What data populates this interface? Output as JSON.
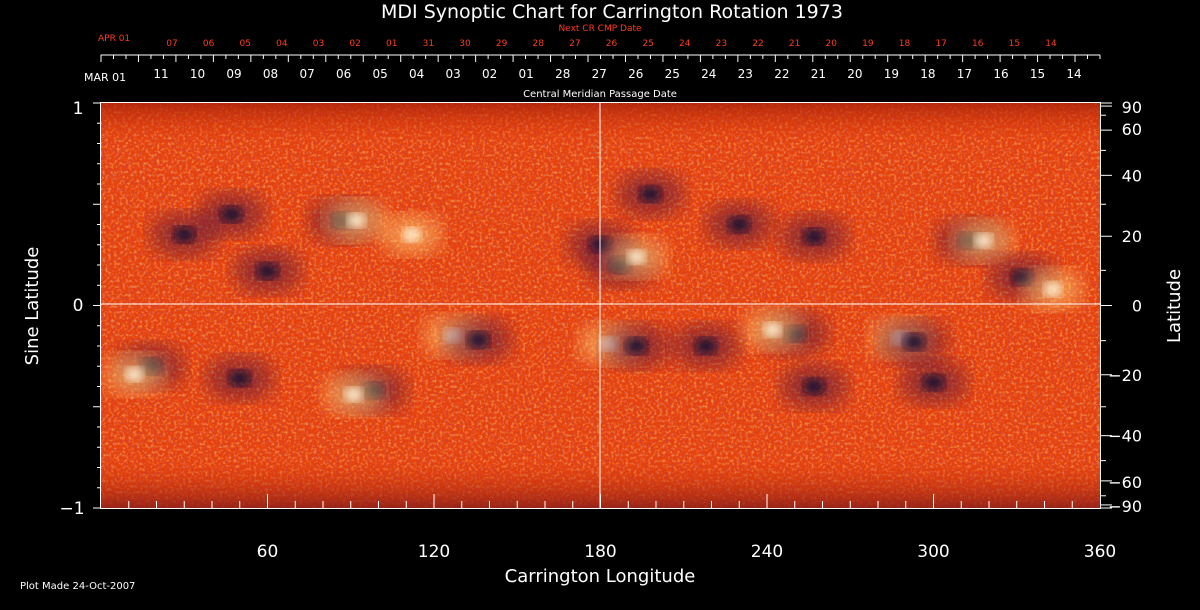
{
  "chart_data": {
    "type": "heatmap",
    "title": "MDI Synoptic Chart for Carrington Rotation 1973",
    "xlabel": "Carrington Longitude",
    "ylabel_left": "Sine Latitude",
    "ylabel_right": "Latitude",
    "xlim": [
      0,
      360
    ],
    "ylim": [
      -1,
      1
    ],
    "x_ticks": [
      "60",
      "120",
      "180",
      "240",
      "300",
      "360"
    ],
    "y_ticks_left": [
      "1",
      "0",
      "−1"
    ],
    "y_ticks_right": [
      "90",
      "60",
      "40",
      "20",
      "0",
      "−20",
      "−40",
      "−60",
      "−90"
    ],
    "top_axis_label": "Central Meridian Passage Date",
    "top_axis_month": "MAR 01",
    "top_axis_dates": [
      "11",
      "10",
      "09",
      "08",
      "07",
      "06",
      "05",
      "04",
      "03",
      "02",
      "01",
      "28",
      "27",
      "26",
      "25",
      "24",
      "23",
      "22",
      "21",
      "20",
      "19",
      "18",
      "17",
      "16",
      "15",
      "14"
    ],
    "next_cr_label": "Next CR CMP Date",
    "next_cr_month": "APR 01",
    "next_cr_dates": [
      "07",
      "06",
      "05",
      "04",
      "03",
      "02",
      "01",
      "31",
      "30",
      "29",
      "28",
      "27",
      "26",
      "25",
      "24",
      "23",
      "22",
      "21",
      "20",
      "19",
      "18",
      "17",
      "16",
      "15",
      "14"
    ],
    "footer": "Plot Made 24-Oct-2007",
    "crosshair": {
      "longitude": 180,
      "sine_latitude": 0
    },
    "colormap": [
      "#3b1060",
      "#9a1c0a",
      "#ff4d00",
      "#ffb347",
      "#fff3c4"
    ],
    "regions": [
      {
        "lon": 87,
        "sinlat": 0.42,
        "sign": -1
      },
      {
        "lon": 92,
        "sinlat": 0.42,
        "sign": 1
      },
      {
        "lon": 60,
        "sinlat": 0.17,
        "sign": -1
      },
      {
        "lon": 47,
        "sinlat": 0.45,
        "sign": -1
      },
      {
        "lon": 112,
        "sinlat": 0.35,
        "sign": 1
      },
      {
        "lon": 180,
        "sinlat": 0.3,
        "sign": -1
      },
      {
        "lon": 187,
        "sinlat": 0.2,
        "sign": -1
      },
      {
        "lon": 193,
        "sinlat": 0.24,
        "sign": 1
      },
      {
        "lon": 198,
        "sinlat": 0.55,
        "sign": -1
      },
      {
        "lon": 230,
        "sinlat": 0.4,
        "sign": -1
      },
      {
        "lon": 257,
        "sinlat": 0.34,
        "sign": -1
      },
      {
        "lon": 313,
        "sinlat": 0.32,
        "sign": -1
      },
      {
        "lon": 318,
        "sinlat": 0.32,
        "sign": 1
      },
      {
        "lon": 332,
        "sinlat": 0.14,
        "sign": -1
      },
      {
        "lon": 343,
        "sinlat": 0.08,
        "sign": 1
      },
      {
        "lon": 30,
        "sinlat": 0.35,
        "sign": -1
      },
      {
        "lon": 18,
        "sinlat": -0.3,
        "sign": -1
      },
      {
        "lon": 12,
        "sinlat": -0.34,
        "sign": 1
      },
      {
        "lon": 50,
        "sinlat": -0.36,
        "sign": -1
      },
      {
        "lon": 98,
        "sinlat": -0.42,
        "sign": -1
      },
      {
        "lon": 91,
        "sinlat": -0.44,
        "sign": 1
      },
      {
        "lon": 127,
        "sinlat": -0.15,
        "sign": 1
      },
      {
        "lon": 136,
        "sinlat": -0.17,
        "sign": -1
      },
      {
        "lon": 183,
        "sinlat": -0.19,
        "sign": 1
      },
      {
        "lon": 193,
        "sinlat": -0.2,
        "sign": -1
      },
      {
        "lon": 250,
        "sinlat": -0.14,
        "sign": -1
      },
      {
        "lon": 242,
        "sinlat": -0.12,
        "sign": 1
      },
      {
        "lon": 288,
        "sinlat": -0.16,
        "sign": 1
      },
      {
        "lon": 293,
        "sinlat": -0.18,
        "sign": -1
      },
      {
        "lon": 300,
        "sinlat": -0.38,
        "sign": -1
      },
      {
        "lon": 257,
        "sinlat": -0.4,
        "sign": -1
      },
      {
        "lon": 218,
        "sinlat": -0.2,
        "sign": -1
      }
    ]
  }
}
